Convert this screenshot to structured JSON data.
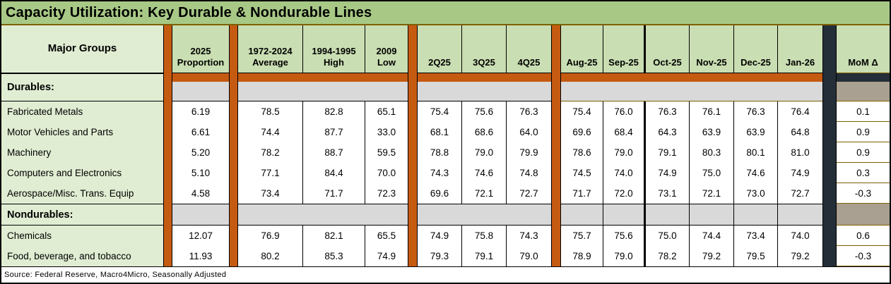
{
  "colors": {
    "title_bg": "#A8C986",
    "header_bg": "#C9DEB2",
    "label_bg": "#E0EDD2",
    "band_gray": "#D9D9D9",
    "orange": "#C55A11",
    "dark": "#242E38",
    "taupe": "#A9A091",
    "olive": "#7F6000"
  },
  "chart_data": {
    "type": "table",
    "title": "Capacity Utilization: Key Durable & Nondurable Lines",
    "source": "Source: Federal Reserve, Macro4Micro, Seasonally Adjusted",
    "columns": [
      {
        "key": "label",
        "header": "Major Groups"
      },
      {
        "key": "proportion",
        "header": "2025\nProportion"
      },
      {
        "key": "avg",
        "header": "1972-2024\nAverage"
      },
      {
        "key": "high",
        "header": "1994-1995\nHigh"
      },
      {
        "key": "low",
        "header": "2009\nLow"
      },
      {
        "key": "q2",
        "header": "2Q25"
      },
      {
        "key": "q3",
        "header": "3Q25"
      },
      {
        "key": "q4",
        "header": "4Q25"
      },
      {
        "key": "aug",
        "header": "Aug-25"
      },
      {
        "key": "sep",
        "header": "Sep-25"
      },
      {
        "key": "oct",
        "header": "Oct-25"
      },
      {
        "key": "nov",
        "header": "Nov-25"
      },
      {
        "key": "dec",
        "header": "Dec-25"
      },
      {
        "key": "jan",
        "header": "Jan-26"
      },
      {
        "key": "mom",
        "header": "MoM Δ"
      }
    ],
    "sections": [
      {
        "label": "Durables:",
        "rows": [
          {
            "label": "Fabricated Metals",
            "values": {
              "proportion": "6.19",
              "avg": "78.5",
              "high": "82.8",
              "low": "65.1",
              "q2": "75.4",
              "q3": "75.6",
              "q4": "76.3",
              "aug": "75.4",
              "sep": "76.0",
              "oct": "76.3",
              "nov": "76.1",
              "dec": "76.3",
              "jan": "76.4",
              "mom": "0.1"
            }
          },
          {
            "label": "Motor Vehicles and Parts",
            "values": {
              "proportion": "6.61",
              "avg": "74.4",
              "high": "87.7",
              "low": "33.0",
              "q2": "68.1",
              "q3": "68.6",
              "q4": "64.0",
              "aug": "69.6",
              "sep": "68.4",
              "oct": "64.3",
              "nov": "63.9",
              "dec": "63.9",
              "jan": "64.8",
              "mom": "0.9"
            }
          },
          {
            "label": "Machinery",
            "values": {
              "proportion": "5.20",
              "avg": "78.2",
              "high": "88.7",
              "low": "59.5",
              "q2": "78.8",
              "q3": "79.0",
              "q4": "79.9",
              "aug": "78.6",
              "sep": "79.0",
              "oct": "79.1",
              "nov": "80.3",
              "dec": "80.1",
              "jan": "81.0",
              "mom": "0.9"
            }
          },
          {
            "label": "Computers and Electronics",
            "values": {
              "proportion": "5.10",
              "avg": "77.1",
              "high": "84.4",
              "low": "70.0",
              "q2": "74.3",
              "q3": "74.6",
              "q4": "74.8",
              "aug": "74.5",
              "sep": "74.0",
              "oct": "74.9",
              "nov": "75.0",
              "dec": "74.6",
              "jan": "74.9",
              "mom": "0.3"
            }
          },
          {
            "label": "Aerospace/Misc. Trans. Equip",
            "values": {
              "proportion": "4.58",
              "avg": "73.4",
              "high": "71.7",
              "low": "72.3",
              "q2": "69.6",
              "q3": "72.1",
              "q4": "72.7",
              "aug": "71.7",
              "sep": "72.0",
              "oct": "73.1",
              "nov": "72.1",
              "dec": "73.0",
              "jan": "72.7",
              "mom": "-0.3"
            }
          }
        ]
      },
      {
        "label": "Nondurables:",
        "rows": [
          {
            "label": "Chemicals",
            "values": {
              "proportion": "12.07",
              "avg": "76.9",
              "high": "82.1",
              "low": "65.5",
              "q2": "74.9",
              "q3": "75.8",
              "q4": "74.3",
              "aug": "75.7",
              "sep": "75.6",
              "oct": "75.0",
              "nov": "74.4",
              "dec": "73.4",
              "jan": "74.0",
              "mom": "0.6"
            }
          },
          {
            "label": "Food, beverage, and tobacco",
            "values": {
              "proportion": "11.93",
              "avg": "80.2",
              "high": "85.3",
              "low": "74.9",
              "q2": "79.3",
              "q3": "79.1",
              "q4": "79.0",
              "aug": "78.9",
              "sep": "79.0",
              "oct": "78.2",
              "nov": "79.2",
              "dec": "79.5",
              "jan": "79.2",
              "mom": "-0.3"
            }
          }
        ]
      }
    ]
  }
}
